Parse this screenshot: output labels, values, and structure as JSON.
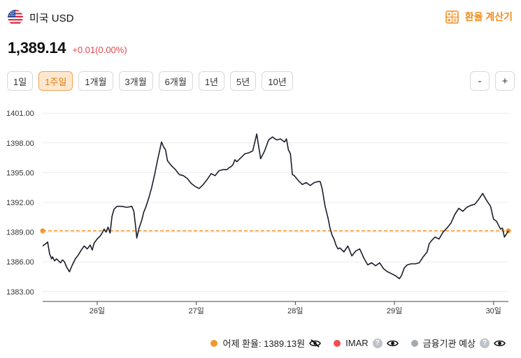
{
  "header": {
    "title": "미국 USD",
    "flag_icon": "us-flag-icon"
  },
  "calculator": {
    "label": "환율 계산기",
    "icon": "calculator-icon",
    "color": "#f28c1a"
  },
  "price": {
    "value": "1,389.14",
    "change": "+0.01(0.00%)",
    "change_color": "#e5484d"
  },
  "periods": [
    {
      "label": "1일",
      "active": false
    },
    {
      "label": "1주일",
      "active": true
    },
    {
      "label": "1개월",
      "active": false
    },
    {
      "label": "3개월",
      "active": false
    },
    {
      "label": "6개월",
      "active": false
    },
    {
      "label": "1년",
      "active": false
    },
    {
      "label": "5년",
      "active": false
    },
    {
      "label": "10년",
      "active": false
    }
  ],
  "zoom": {
    "minus": "-",
    "plus": "+"
  },
  "legend": {
    "yesterday": {
      "label": "어제 환율: 1389.13원",
      "color": "#f5962b",
      "icon": "eye-off-icon"
    },
    "imar": {
      "label": "IMAR",
      "color": "#f04f4f",
      "icon": "eye-icon"
    },
    "forecast": {
      "label": "금융기관 예상",
      "color": "#a6abb2",
      "icon": "eye-icon"
    }
  },
  "chart_data": {
    "type": "line",
    "title": "",
    "xlabel": "",
    "ylabel": "",
    "y_ticks": [
      "1401.00",
      "1398.00",
      "1395.00",
      "1392.00",
      "1389.00",
      "1386.00",
      "1383.00"
    ],
    "ylim": [
      1382,
      1402
    ],
    "x_ticks": [
      "26일",
      "27일",
      "28일",
      "29일",
      "30일"
    ],
    "x_tick_pos": [
      0.55,
      1.55,
      2.55,
      3.55,
      4.55
    ],
    "xlim": [
      0,
      4.7
    ],
    "grid": "horizontal",
    "reference_line": {
      "value": 1389.13,
      "label": "어제 환율",
      "color": "#f5962b",
      "style": "dashed"
    },
    "series": [
      {
        "color": "#1b1e2b",
        "x": [
          0.0,
          0.04,
          0.05,
          0.07,
          0.09,
          0.1,
          0.12,
          0.14,
          0.18,
          0.2,
          0.22,
          0.24,
          0.27,
          0.3,
          0.33,
          0.36,
          0.39,
          0.42,
          0.45,
          0.48,
          0.5,
          0.52,
          0.55,
          0.58,
          0.6,
          0.62,
          0.64,
          0.66,
          0.68,
          0.7,
          0.72,
          0.75,
          0.8,
          0.85,
          0.9,
          0.92,
          0.94,
          0.95,
          0.97,
          1.0,
          1.02,
          1.04,
          1.07,
          1.1,
          1.13,
          1.16,
          1.18,
          1.2,
          1.22,
          1.24,
          1.26,
          1.3,
          1.34,
          1.38,
          1.42,
          1.46,
          1.5,
          1.54,
          1.58,
          1.62,
          1.66,
          1.7,
          1.74,
          1.78,
          1.82,
          1.86,
          1.88,
          1.9,
          1.92,
          1.94,
          1.96,
          2.0,
          2.04,
          2.08,
          2.12,
          2.16,
          2.2,
          2.24,
          2.28,
          2.32,
          2.36,
          2.4,
          2.44,
          2.46,
          2.48,
          2.5,
          2.52,
          2.54,
          2.58,
          2.62,
          2.66,
          2.7,
          2.74,
          2.78,
          2.8,
          2.82,
          2.85,
          2.88,
          2.9,
          2.92,
          2.94,
          2.96,
          2.98,
          3.0,
          3.04,
          3.08,
          3.12,
          3.16,
          3.2,
          3.24,
          3.28,
          3.32,
          3.36,
          3.4,
          3.44,
          3.48,
          3.52,
          3.56,
          3.6,
          3.62,
          3.65,
          3.68,
          3.72,
          3.76,
          3.8,
          3.84,
          3.88,
          3.9,
          3.92,
          3.96,
          4.0,
          4.04,
          4.08,
          4.12,
          4.16,
          4.2,
          4.24,
          4.28,
          4.32,
          4.36,
          4.4,
          4.44,
          4.48,
          4.52,
          4.55,
          4.58,
          4.6,
          4.62,
          4.64,
          4.66,
          4.68,
          4.7
        ],
        "y": [
          1387.6,
          1387.9,
          1388.0,
          1386.8,
          1386.3,
          1386.5,
          1386.1,
          1386.3,
          1385.9,
          1386.2,
          1386.0,
          1385.5,
          1385.0,
          1385.7,
          1386.3,
          1386.7,
          1387.2,
          1387.6,
          1387.3,
          1387.7,
          1387.2,
          1387.9,
          1388.3,
          1388.6,
          1388.9,
          1389.3,
          1389.0,
          1389.5,
          1388.9,
          1390.6,
          1391.3,
          1391.6,
          1391.6,
          1391.5,
          1391.6,
          1391.1,
          1389.4,
          1388.4,
          1389.3,
          1390.2,
          1391.0,
          1391.5,
          1392.4,
          1393.5,
          1394.8,
          1396.3,
          1397.2,
          1398.1,
          1397.6,
          1397.3,
          1396.2,
          1395.7,
          1395.3,
          1394.8,
          1394.7,
          1394.4,
          1393.9,
          1393.6,
          1393.4,
          1393.8,
          1394.3,
          1394.9,
          1394.7,
          1395.2,
          1395.3,
          1395.3,
          1395.5,
          1395.6,
          1395.8,
          1396.3,
          1396.1,
          1396.5,
          1396.9,
          1397.0,
          1397.2,
          1398.9,
          1396.4,
          1397.2,
          1398.3,
          1398.6,
          1398.3,
          1398.4,
          1398.1,
          1398.4,
          1397.3,
          1396.9,
          1394.8,
          1394.7,
          1394.2,
          1393.8,
          1394.0,
          1393.7,
          1394.0,
          1394.1,
          1394.1,
          1393.4,
          1391.6,
          1390.4,
          1389.4,
          1388.7,
          1388.3,
          1387.7,
          1387.3,
          1387.4,
          1387.0,
          1387.6,
          1386.6,
          1387.1,
          1387.3,
          1386.4,
          1385.7,
          1385.9,
          1385.6,
          1385.9,
          1385.3,
          1385.0,
          1384.8,
          1384.6,
          1384.3,
          1384.6,
          1385.4,
          1385.7,
          1385.8,
          1385.8,
          1385.9,
          1386.5,
          1387.0,
          1387.8,
          1388.1,
          1388.5,
          1388.3,
          1389.0,
          1389.4,
          1389.9,
          1390.8,
          1391.4,
          1391.1,
          1391.5,
          1391.7,
          1391.8,
          1392.3,
          1392.9,
          1392.2,
          1391.6,
          1390.3,
          1390.1,
          1389.7,
          1389.3,
          1389.4,
          1388.5,
          1388.8,
          1389.14
        ]
      }
    ]
  }
}
